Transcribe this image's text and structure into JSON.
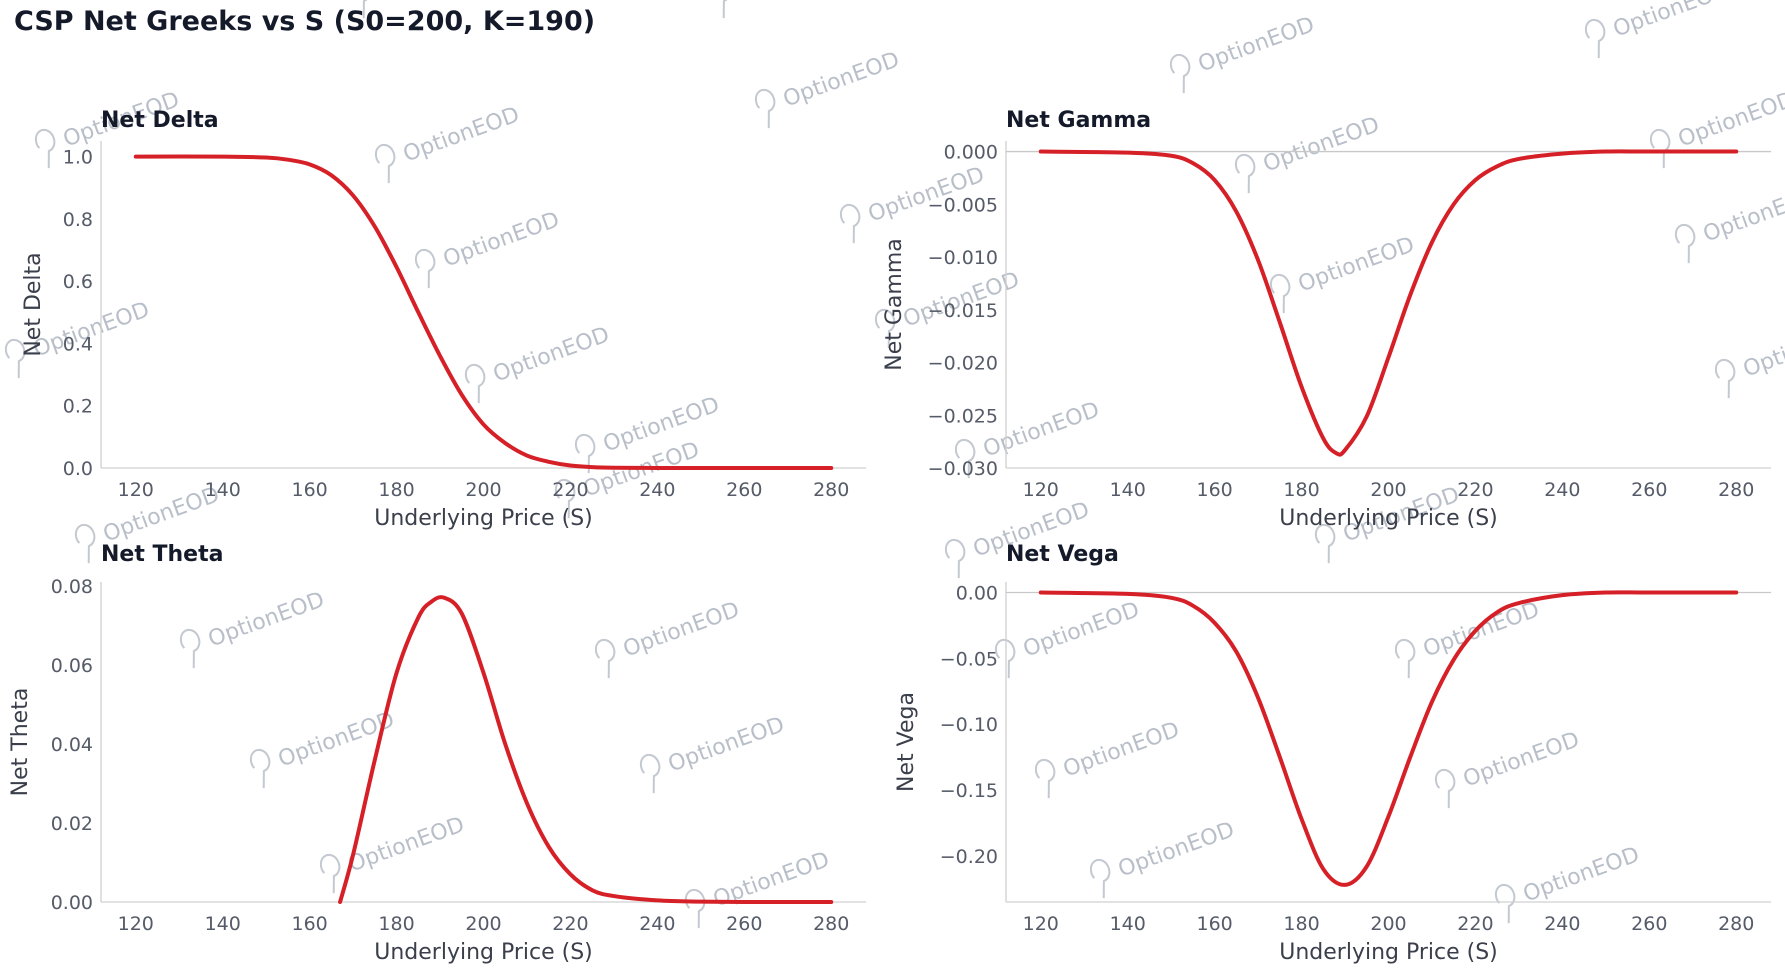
{
  "figure": {
    "title": "CSP Net Greeks vs S (S0=200, K=190)",
    "watermark": "OptionEOD",
    "colors": {
      "line": "#d62027",
      "zero_line": "#c8c8c8",
      "axis": "#d0d0d0",
      "tick_text": "#555b68",
      "title_text": "#141a2a"
    }
  },
  "chart_data": [
    {
      "type": "line",
      "title": "Net Delta",
      "xlabel": "Underlying Price (S)",
      "ylabel": "Net Delta",
      "xlim": [
        112,
        288
      ],
      "ylim": [
        0,
        1.05
      ],
      "xticks": [
        120,
        140,
        160,
        180,
        200,
        220,
        240,
        260,
        280
      ],
      "yticks": [
        0,
        0.2,
        0.4,
        0.6,
        0.8,
        1.0
      ],
      "ytick_labels": [
        "0.0",
        "0.2",
        "0.4",
        "0.6",
        "0.8",
        "1.0"
      ],
      "zero_line": false,
      "grid": false,
      "series": [
        {
          "x": [
            120,
            140,
            150,
            155,
            160,
            165,
            170,
            175,
            180,
            185,
            190,
            195,
            200,
            205,
            210,
            215,
            220,
            225,
            230,
            240,
            250,
            260,
            280
          ],
          "values": [
            1.0,
            1.0,
            0.997,
            0.99,
            0.975,
            0.94,
            0.875,
            0.775,
            0.645,
            0.5,
            0.36,
            0.235,
            0.14,
            0.08,
            0.04,
            0.02,
            0.008,
            0.003,
            0.001,
            0.0,
            0.0,
            0.0,
            0.0
          ]
        }
      ]
    },
    {
      "type": "line",
      "title": "Net Gamma",
      "xlabel": "Underlying Price (S)",
      "ylabel": "Net Gamma",
      "xlim": [
        112,
        288
      ],
      "ylim": [
        -0.03,
        0.001
      ],
      "xticks": [
        120,
        140,
        160,
        180,
        200,
        220,
        240,
        260,
        280
      ],
      "yticks": [
        0.0,
        -0.005,
        -0.01,
        -0.015,
        -0.02,
        -0.025,
        -0.03
      ],
      "ytick_labels": [
        "0.000",
        "−0.005",
        "−0.010",
        "−0.015",
        "−0.020",
        "−0.025",
        "−0.030"
      ],
      "zero_line": true,
      "grid": false,
      "series": [
        {
          "x": [
            120,
            140,
            150,
            155,
            160,
            165,
            170,
            175,
            180,
            185,
            188,
            190,
            195,
            200,
            205,
            210,
            215,
            220,
            225,
            230,
            240,
            250,
            260,
            280
          ],
          "values": [
            0.0,
            -0.0001,
            -0.0004,
            -0.0011,
            -0.0027,
            -0.0057,
            -0.0103,
            -0.0162,
            -0.0223,
            -0.0272,
            -0.0286,
            -0.0283,
            -0.0251,
            -0.0195,
            -0.0136,
            -0.0086,
            -0.005,
            -0.0027,
            -0.0014,
            -0.0007,
            -0.0002,
            0.0,
            0.0,
            0.0
          ]
        }
      ]
    },
    {
      "type": "line",
      "title": "Net Theta",
      "xlabel": "Underlying Price (S)",
      "ylabel": "Net Theta",
      "xlim": [
        112,
        288
      ],
      "ylim": [
        0,
        0.081
      ],
      "xticks": [
        120,
        140,
        160,
        180,
        200,
        220,
        240,
        260,
        280
      ],
      "yticks": [
        0,
        0.02,
        0.04,
        0.06,
        0.08
      ],
      "ytick_labels": [
        "0.00",
        "0.02",
        "0.04",
        "0.06",
        "0.08"
      ],
      "zero_line": false,
      "grid": false,
      "series": [
        {
          "x": [
            167,
            170,
            175,
            180,
            185,
            188,
            191,
            195,
            200,
            205,
            210,
            215,
            220,
            225,
            230,
            240,
            250,
            260,
            280
          ],
          "values": [
            0.0,
            0.012,
            0.036,
            0.058,
            0.072,
            0.076,
            0.077,
            0.073,
            0.058,
            0.04,
            0.025,
            0.014,
            0.007,
            0.003,
            0.0015,
            0.0004,
            0.0001,
            0.0,
            0.0
          ]
        }
      ]
    },
    {
      "type": "line",
      "title": "Net Vega",
      "xlabel": "Underlying Price (S)",
      "ylabel": "Net Vega",
      "xlim": [
        112,
        288
      ],
      "ylim": [
        -0.235,
        0.008
      ],
      "xticks": [
        120,
        140,
        160,
        180,
        200,
        220,
        240,
        260,
        280
      ],
      "yticks": [
        0.0,
        -0.05,
        -0.1,
        -0.15,
        -0.2
      ],
      "ytick_labels": [
        "0.00",
        "−0.05",
        "−0.10",
        "−0.15",
        "−0.20"
      ],
      "zero_line": true,
      "grid": false,
      "series": [
        {
          "x": [
            120,
            140,
            150,
            155,
            160,
            165,
            170,
            175,
            180,
            185,
            190,
            195,
            200,
            205,
            210,
            215,
            220,
            225,
            230,
            240,
            250,
            260,
            280
          ],
          "values": [
            0.0,
            -0.001,
            -0.004,
            -0.01,
            -0.023,
            -0.045,
            -0.08,
            -0.125,
            -0.172,
            -0.21,
            -0.222,
            -0.208,
            -0.17,
            -0.125,
            -0.083,
            -0.051,
            -0.029,
            -0.015,
            -0.008,
            -0.002,
            0.0,
            0.0,
            0.0
          ]
        }
      ]
    }
  ]
}
